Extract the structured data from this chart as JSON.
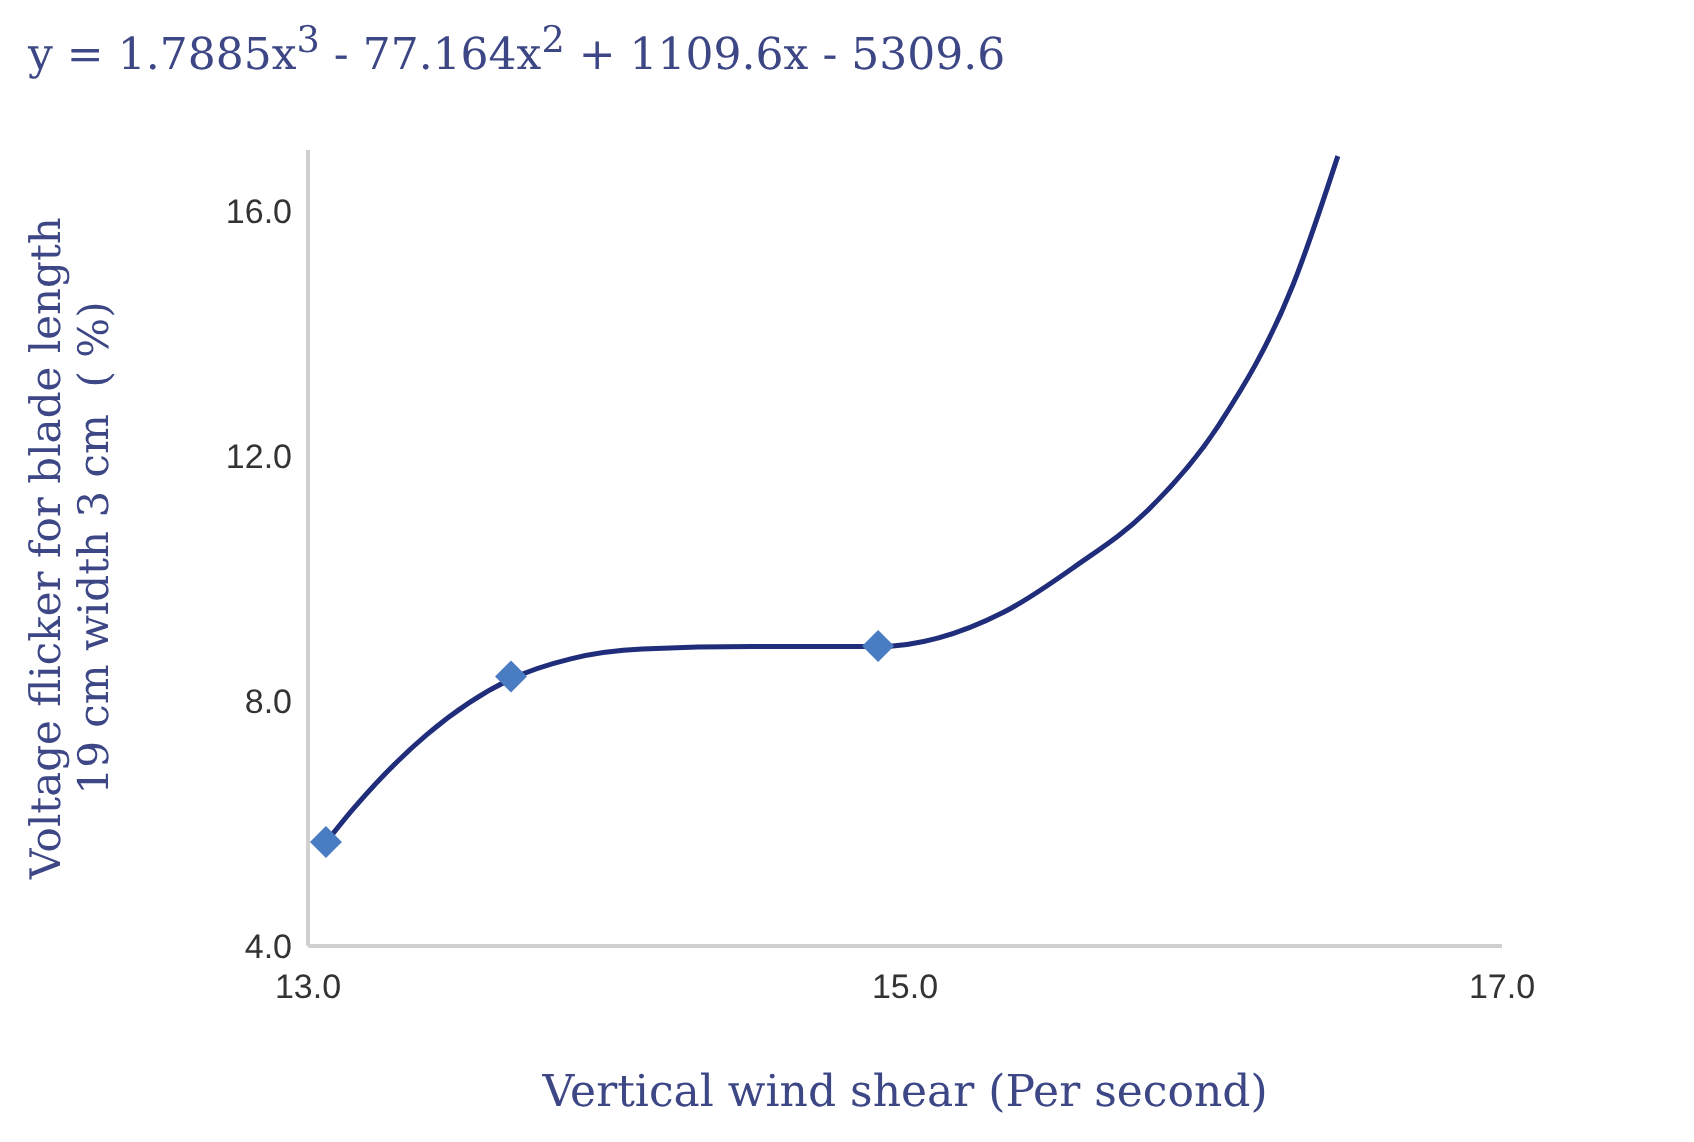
{
  "chart_data": {
    "type": "scatter",
    "xlabel": "Vertical wind shear (Per second)",
    "ylabel": "Voltage flicker for blade length 19 cm width 3 cm  ( %)",
    "annotations": [
      "y = 1.7885x$^{3}$ - 77.164x$^{2}$ + 1109.6x - 5309.6"
    ],
    "series": [
      {
        "color": "#4a7cc4",
        "marker": "diamond",
        "x": [
          13.06,
          13.68,
          14.91
        ],
        "values": [
          5.7,
          8.4,
          8.9
        ]
      },
      {
        "type": "line",
        "color": "#1f2d7a",
        "marker": "none",
        "x": [
          13.06,
          13.15,
          13.4,
          13.68,
          13.88,
          14.12,
          14.49,
          14.91,
          15.33,
          15.57,
          15.81,
          16.05,
          16.3,
          16.45
        ],
        "values": [
          5.69,
          6.23,
          7.46,
          8.36,
          8.69,
          8.85,
          8.89,
          8.89,
          9.45,
          10.2,
          11.1,
          12.5,
          14.8,
          16.9
        ]
      }
    ],
    "xlim": [
      13,
      17
    ],
    "xticks": [
      {
        "value": 13,
        "label": "13.0"
      },
      {
        "value": 15,
        "label": "15.0"
      },
      {
        "value": 17,
        "label": "17.0"
      }
    ],
    "ylim": [
      4,
      17
    ],
    "yticks": [
      {
        "value": 4,
        "label": "4.0"
      },
      {
        "value": 8,
        "label": "8.0"
      },
      {
        "value": 12,
        "label": "12.0"
      },
      {
        "value": 16,
        "label": "16.0"
      }
    ],
    "grid": false,
    "legend": false
  }
}
